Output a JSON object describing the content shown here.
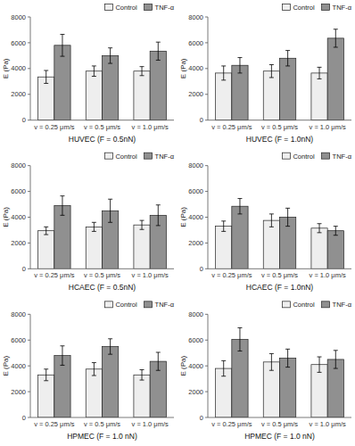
{
  "chart_data": [
    {
      "type": "bar",
      "xlabel": "HUVEC (F = 0.5nN)",
      "ylabel": "E (Pa)",
      "categories": [
        "v = 0.25 μm/s",
        "v = 0.5 μm/s",
        "v = 1.0 μm/s"
      ],
      "series": [
        {
          "name": "Control",
          "color": "#eeeeee",
          "values": [
            3350,
            3800,
            3800
          ],
          "errors": [
            500,
            400,
            350
          ]
        },
        {
          "name": "TNF-α",
          "color": "#909090",
          "values": [
            5800,
            5000,
            5350
          ],
          "errors": [
            850,
            600,
            700
          ]
        }
      ],
      "ylim": [
        0,
        8000
      ],
      "yticks": [
        0,
        2000,
        4000,
        6000,
        8000
      ],
      "grid": false,
      "legend": "upper right"
    },
    {
      "type": "bar",
      "xlabel": "HUVEC (F = 1.0nN)",
      "ylabel": "E (Pa)",
      "categories": [
        "v = 0.25 μm/s",
        "v = 0.5 μm/s",
        "v = 1.0 μm/s"
      ],
      "series": [
        {
          "name": "Control",
          "color": "#eeeeee",
          "values": [
            3650,
            3800,
            3650
          ],
          "errors": [
            550,
            500,
            450
          ]
        },
        {
          "name": "TNF-α",
          "color": "#909090",
          "values": [
            4250,
            4800,
            6350
          ],
          "errors": [
            600,
            600,
            700
          ]
        }
      ],
      "ylim": [
        0,
        8000
      ],
      "yticks": [
        0,
        2000,
        4000,
        6000,
        8000
      ],
      "grid": false,
      "legend": "upper right"
    },
    {
      "type": "bar",
      "xlabel": "HCAEC (F = 0.5nN)",
      "ylabel": "E (Pa)",
      "categories": [
        "v = 0.25 μm/s",
        "v = 0.5 μm/s",
        "v = 1.0 μm/s"
      ],
      "series": [
        {
          "name": "Control",
          "color": "#eeeeee",
          "values": [
            2950,
            3250,
            3400
          ],
          "errors": [
            300,
            350,
            350
          ]
        },
        {
          "name": "TNF-α",
          "color": "#909090",
          "values": [
            4900,
            4500,
            4150
          ],
          "errors": [
            750,
            900,
            800
          ]
        }
      ],
      "ylim": [
        0,
        8000
      ],
      "yticks": [
        0,
        2000,
        4000,
        6000,
        8000
      ],
      "grid": false,
      "legend": "upper right"
    },
    {
      "type": "bar",
      "xlabel": "HCAEC (F = 1.0nN)",
      "ylabel": "E (Pa)",
      "categories": [
        "v = 0.25 μm/s",
        "v = 0.5 μm/s",
        "v = 1.0 μm/s"
      ],
      "series": [
        {
          "name": "Control",
          "color": "#eeeeee",
          "values": [
            3300,
            3750,
            3150
          ],
          "errors": [
            400,
            500,
            350
          ]
        },
        {
          "name": "TNF-α",
          "color": "#909090",
          "values": [
            4850,
            4000,
            2950
          ],
          "errors": [
            600,
            700,
            350
          ]
        }
      ],
      "ylim": [
        0,
        8000
      ],
      "yticks": [
        0,
        2000,
        4000,
        6000,
        8000
      ],
      "grid": false,
      "legend": "upper right"
    },
    {
      "type": "bar",
      "xlabel": "HPMEC (F = 1.0 nN)",
      "ylabel": "E (Pa)",
      "categories": [
        "v = 0.25 μm/s",
        "v = 0.5 μm/s",
        "v = 1.0 μm/s"
      ],
      "series": [
        {
          "name": "Control",
          "color": "#eeeeee",
          "values": [
            3300,
            3750,
            3300
          ],
          "errors": [
            450,
            500,
            400
          ]
        },
        {
          "name": "TNF-α",
          "color": "#909090",
          "values": [
            4800,
            5500,
            4350
          ],
          "errors": [
            750,
            600,
            700
          ]
        }
      ],
      "ylim": [
        0,
        8000
      ],
      "yticks": [
        0,
        2000,
        4000,
        6000,
        8000
      ],
      "grid": false,
      "legend": "upper right"
    },
    {
      "type": "bar",
      "xlabel": "HPMEC (F = 1.0 nN)",
      "ylabel": "E (Pa)",
      "categories": [
        "v = 0.25 μm/s",
        "v = 0.5 μm/s",
        "v = 1.0 μm/s"
      ],
      "series": [
        {
          "name": "Control",
          "color": "#eeeeee",
          "values": [
            3800,
            4300,
            4100
          ],
          "errors": [
            600,
            650,
            600
          ]
        },
        {
          "name": "TNF-α",
          "color": "#909090",
          "values": [
            6050,
            4600,
            4500
          ],
          "errors": [
            900,
            700,
            700
          ]
        }
      ],
      "ylim": [
        0,
        8000
      ],
      "yticks": [
        0,
        2000,
        4000,
        6000,
        8000
      ],
      "grid": false,
      "legend": "upper right"
    }
  ]
}
